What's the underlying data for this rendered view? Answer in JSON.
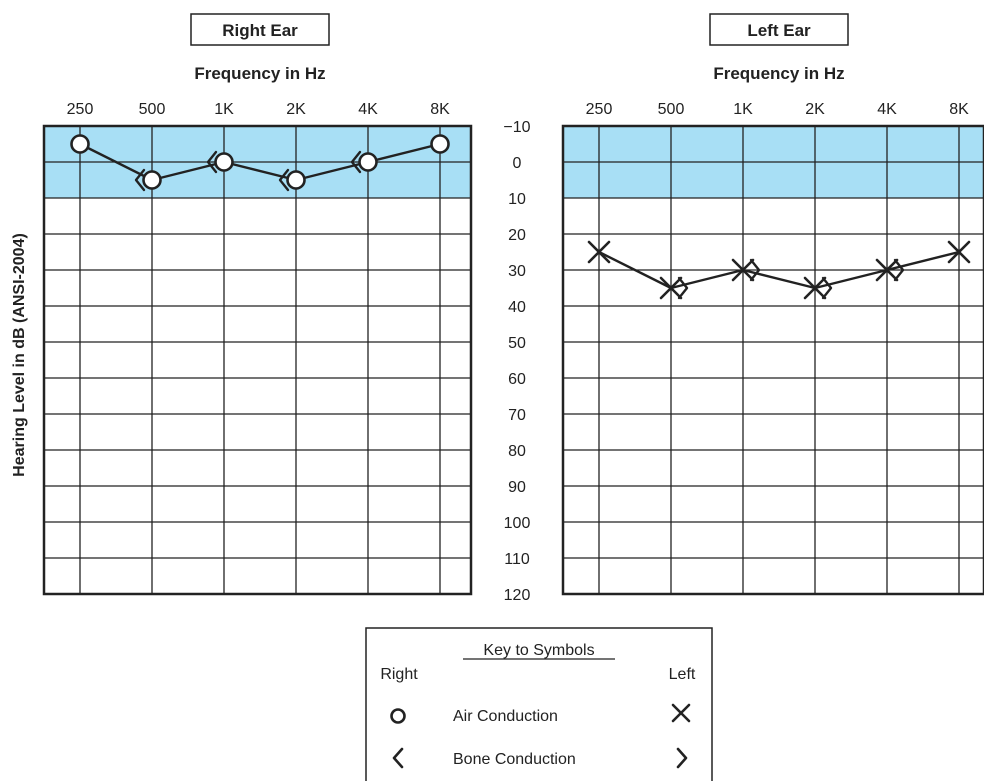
{
  "chart_data": {
    "type": "line",
    "ylabel": "Hearing Level in dB (ANSI-2004)",
    "xlabel": "Frequency in Hz",
    "categories": [
      "250",
      "500",
      "1K",
      "2K",
      "4K",
      "8K"
    ],
    "y_ticks": [
      "−10",
      "0",
      "10",
      "20",
      "30",
      "40",
      "50",
      "60",
      "70",
      "80",
      "90",
      "100",
      "110",
      "120"
    ],
    "ylim": [
      -10,
      120
    ],
    "y_inverted": true,
    "normal_band": [
      -10,
      10
    ],
    "grid": true,
    "charts": [
      {
        "ear_title": "Right Ear",
        "series": [
          {
            "name": "Air Conduction",
            "symbol": "O",
            "values": [
              -5,
              5,
              0,
              5,
              0,
              -5
            ]
          },
          {
            "name": "Bone Conduction",
            "symbol": "<",
            "values": [
              null,
              5,
              0,
              5,
              0,
              null
            ]
          }
        ]
      },
      {
        "ear_title": "Left Ear",
        "series": [
          {
            "name": "Air Conduction",
            "symbol": "X",
            "values": [
              25,
              35,
              30,
              35,
              30,
              25
            ]
          },
          {
            "name": "Bone Conduction",
            "symbol": ">",
            "values": [
              null,
              35,
              30,
              35,
              30,
              null
            ]
          }
        ]
      }
    ],
    "colors": {
      "band": "#a8dff5",
      "line": "#222222",
      "grid": "#222222"
    }
  },
  "key": {
    "title": "Key to Symbols",
    "right_label": "Right",
    "left_label": "Left",
    "rows": [
      {
        "label": "Air Conduction",
        "right_symbol": "circle-icon",
        "left_symbol": "x-icon"
      },
      {
        "label": "Bone Conduction",
        "right_symbol": "left-bracket-icon",
        "left_symbol": "right-bracket-icon"
      }
    ]
  }
}
